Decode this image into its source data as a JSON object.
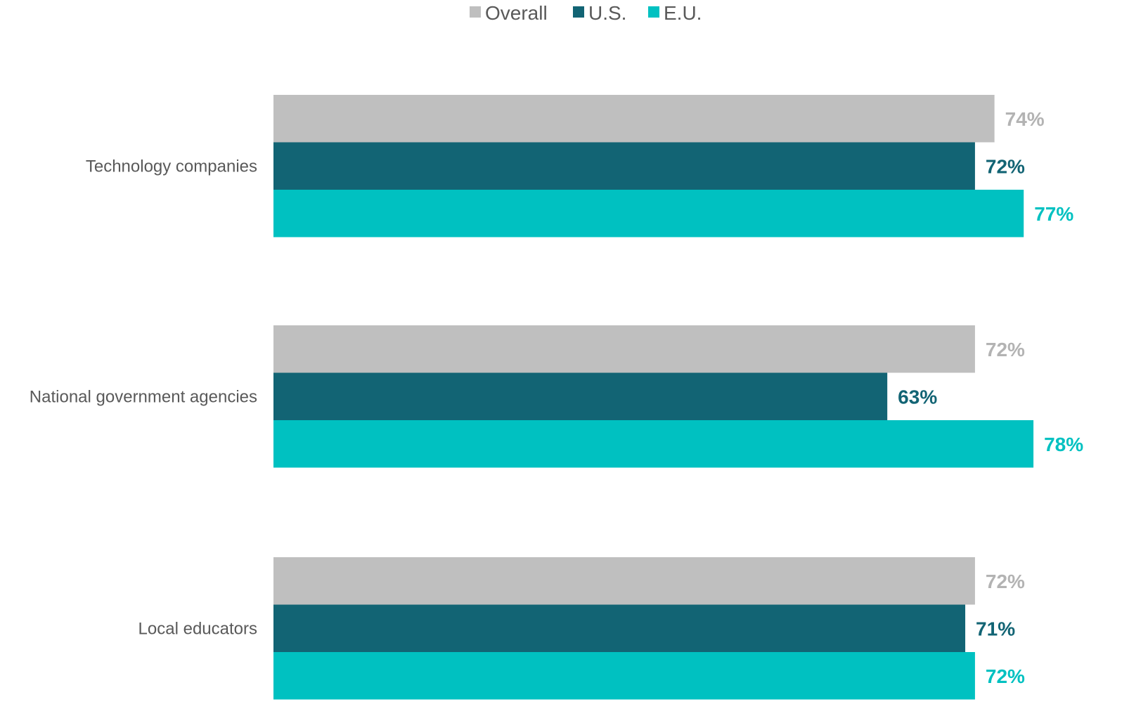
{
  "chart_data": {
    "type": "bar",
    "orientation": "horizontal",
    "categories": [
      "Technology companies",
      "National government agencies",
      "Local educators"
    ],
    "series": [
      {
        "name": "Overall",
        "color": "#bfbfbf",
        "values": [
          74,
          72,
          72
        ],
        "labels": [
          "74%",
          "72%",
          "72%"
        ]
      },
      {
        "name": "U.S.",
        "color": "#126474",
        "values": [
          72,
          63,
          71
        ],
        "labels": [
          "72%",
          "63%",
          "71%"
        ]
      },
      {
        "name": "E.U.",
        "color": "#00c1c1",
        "values": [
          77,
          78,
          72
        ],
        "labels": [
          "77%",
          "78%",
          "72%"
        ]
      }
    ],
    "xlim": [
      0,
      100
    ],
    "value_format": "percent",
    "legend_position": "top-center",
    "grid": false,
    "title": "",
    "xlabel": "",
    "ylabel": ""
  }
}
